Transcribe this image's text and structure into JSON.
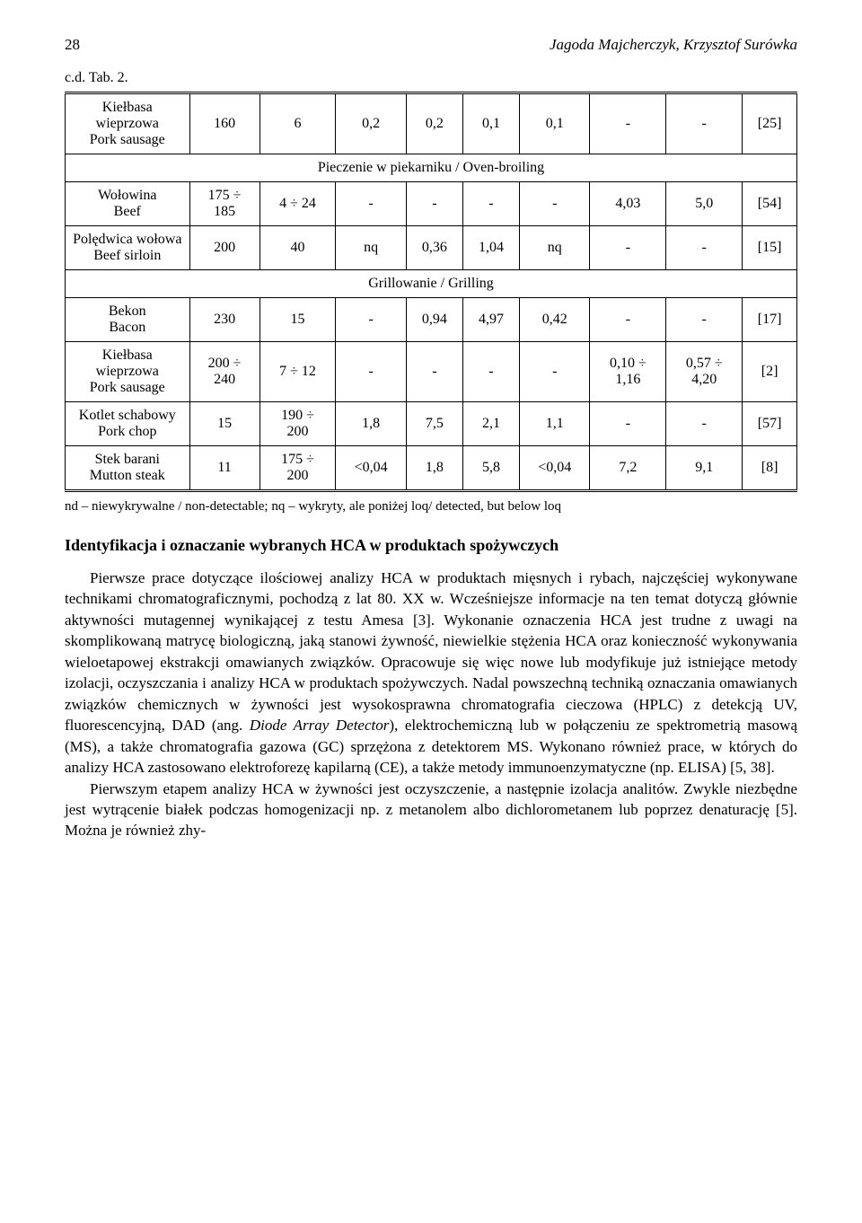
{
  "header": {
    "page_number": "28",
    "running_head": "Jagoda Majcherczyk, Krzysztof Surówka"
  },
  "continuation_label": "c.d. Tab. 2.",
  "table": {
    "section1": {
      "row1": {
        "name": "Kiełbasa\nwieprzowa\nPork sausage",
        "v1": "160",
        "v2": "6",
        "v3": "0,2",
        "v4": "0,2",
        "v5": "0,1",
        "v6": "0,1",
        "v7": "-",
        "v8": "-",
        "v9": "[25]"
      }
    },
    "section2_header": "Pieczenie w piekarniku / Oven-broiling",
    "section2": {
      "row1": {
        "name": "Wołowina\nBeef",
        "v1": "175 ÷\n185",
        "v2": "4 ÷ 24",
        "v3": "-",
        "v4": "-",
        "v5": "-",
        "v6": "-",
        "v7": "4,03",
        "v8": "5,0",
        "v9": "[54]"
      },
      "row2": {
        "name": "Polędwica wołowa\nBeef sirloin",
        "v1": "200",
        "v2": "40",
        "v3": "nq",
        "v4": "0,36",
        "v5": "1,04",
        "v6": "nq",
        "v7": "-",
        "v8": "-",
        "v9": "[15]"
      }
    },
    "section3_header": "Grillowanie / Grilling",
    "section3": {
      "row1": {
        "name": "Bekon\nBacon",
        "v1": "230",
        "v2": "15",
        "v3": "-",
        "v4": "0,94",
        "v5": "4,97",
        "v6": "0,42",
        "v7": "-",
        "v8": "-",
        "v9": "[17]"
      },
      "row2": {
        "name": "Kiełbasa\nwieprzowa\nPork sausage",
        "v1": "200 ÷\n240",
        "v2": "7 ÷ 12",
        "v3": "-",
        "v4": "-",
        "v5": "-",
        "v6": "-",
        "v7": "0,10 ÷\n1,16",
        "v8": "0,57 ÷\n4,20",
        "v9": "[2]"
      },
      "row3": {
        "name": "Kotlet schabowy\nPork chop",
        "v1": "15",
        "v2": "190 ÷\n200",
        "v3": "1,8",
        "v4": "7,5",
        "v5": "2,1",
        "v6": "1,1",
        "v7": "-",
        "v8": "-",
        "v9": "[57]"
      },
      "row4": {
        "name": "Stek barani\nMutton steak",
        "v1": "11",
        "v2": "175 ÷\n200",
        "v3": "<0,04",
        "v4": "1,8",
        "v5": "5,8",
        "v6": "<0,04",
        "v7": "7,2",
        "v8": "9,1",
        "v9": "[8]"
      }
    }
  },
  "table_note": "nd – niewykrywalne / non-detectable; nq – wykryty, ale poniżej loq/ detected, but below loq",
  "section_heading": "Identyfikacja i oznaczanie wybranych HCA w produktach spożywczych",
  "paragraph1_a": "Pierwsze prace dotyczące ilościowej analizy HCA w produktach mięsnych i rybach, najczęściej wykonywane technikami chromatograficznymi, pochodzą z lat 80. XX w. Wcześniejsze informacje na ten temat dotyczą głównie aktywności mutagennej wynikającej z testu Amesa [3]. Wykonanie oznaczenia HCA jest trudne z uwagi na skomplikowaną matrycę biologiczną, jaką stanowi żywność, niewielkie stężenia HCA oraz konieczność wykonywania wieloetapowej ekstrakcji omawianych związków. Opracowuje się więc nowe lub modyfikuje już istniejące metody izolacji, oczyszczania i analizy HCA w produktach spożywczych. Nadal powszechną techniką oznaczania omawianych związków chemicznych w żywności jest wysokosprawna chromatografia cieczowa (HPLC) z detekcją UV, fluorescencyjną, DAD (ang. ",
  "paragraph1_italic": "Diode Array Detector",
  "paragraph1_b": "), elektrochemiczną lub w połączeniu ze spektrometrią masową (MS), a także chromatografia gazowa (GC) sprzężona z detektorem MS. Wykonano również prace, w których do analizy HCA zastosowano elektroforezę kapilarną (CE), a także metody immunoenzymatyczne (np. ELISA) [5, 38].",
  "paragraph2": "Pierwszym etapem analizy HCA w żywności jest oczyszczenie, a następnie izolacja analitów. Zwykle niezbędne jest wytrącenie białek podczas homogenizacji np. z metanolem albo dichlorometanem lub poprzez denaturację [5]. Można je również zhy-"
}
